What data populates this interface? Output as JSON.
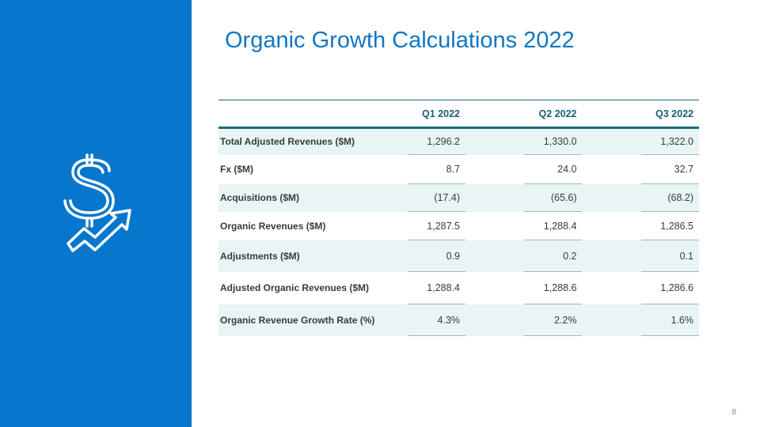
{
  "slide": {
    "title": "Organic Growth Calculations 2022",
    "page_number": "8",
    "side_panel_color": "#0677cc",
    "title_color": "#1376c0",
    "icon": "dollar-growth-arrow-icon"
  },
  "table": {
    "header_label": "",
    "columns": [
      "Q1 2022",
      "Q2 2022",
      "Q3 2022"
    ],
    "rows": [
      {
        "label": "Total Adjusted Revenues ($M)",
        "values": [
          "1,296.2",
          "1,330.0",
          "1,322.0"
        ]
      },
      {
        "label": "Fx ($M)",
        "values": [
          "8.7",
          "24.0",
          "32.7"
        ]
      },
      {
        "label": "Acquisitions ($M)",
        "values": [
          "(17.4)",
          "(65.6)",
          "(68.2)"
        ]
      },
      {
        "label": "Organic Revenues ($M)",
        "values": [
          "1,287.5",
          "1,288.4",
          "1,286.5"
        ]
      },
      {
        "label": "Adjustments ($M)",
        "values": [
          "0.9",
          "0.2",
          "0.1"
        ]
      },
      {
        "label": "Adjusted Organic Revenues ($M)",
        "values": [
          "1,288.4",
          "1,288.6",
          "1,286.6"
        ]
      },
      {
        "label": "Organic Revenue Growth Rate (%)",
        "values": [
          "4.3%",
          "2.2%",
          "1.6%"
        ]
      }
    ]
  }
}
